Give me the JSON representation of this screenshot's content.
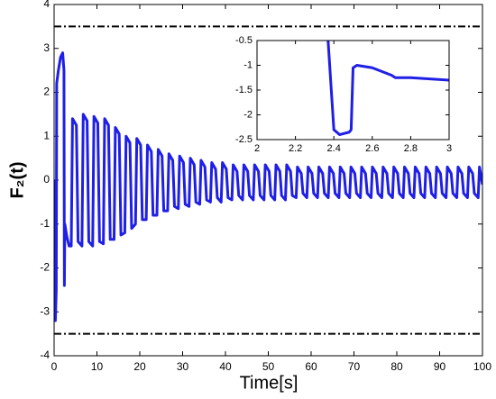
{
  "chart_data": [
    {
      "type": "line",
      "xlabel": "Time[s]",
      "ylabel": "F₂(t)",
      "color": "#1f1fe6",
      "xlim": [
        0,
        100
      ],
      "xticks": [
        0,
        10,
        20,
        30,
        40,
        50,
        60,
        70,
        80,
        90,
        100
      ],
      "ylim": [
        -4,
        4
      ],
      "yticks": [
        -4,
        -3,
        -2,
        -1,
        0,
        1,
        2,
        3,
        4
      ],
      "hlines": [
        3.5,
        -3.5
      ],
      "hline_color": "#000000",
      "x": [
        0,
        0.1,
        0.3,
        0.5,
        0.6,
        1,
        1.5,
        2,
        2.3,
        2.4,
        2.5,
        3,
        3.5,
        4,
        4.3,
        5.2,
        5.6,
        6.5,
        6.8,
        7.7,
        8.1,
        9,
        9.3,
        10.2,
        10.6,
        11.5,
        11.8,
        12.7,
        13.1,
        14,
        14.3,
        15.2,
        15.6,
        16.5,
        16.8,
        17.7,
        18.1,
        19,
        19.3,
        20.2,
        20.6,
        21.5,
        21.8,
        22.7,
        23.1,
        24,
        24.3,
        25.2,
        25.6,
        26.5,
        26.8,
        27.7,
        28.1,
        29,
        29.3,
        30.2,
        30.6,
        31.5,
        31.8,
        32.7,
        33.1,
        34,
        34.3,
        35.2,
        35.6,
        36.5,
        36.8,
        37.7,
        38.1,
        39,
        39.3,
        40.2,
        40.6,
        41.5,
        41.8,
        42.7,
        43.1,
        44,
        44.3,
        45.2,
        45.6,
        46.5,
        46.8,
        47.7,
        48.1,
        49,
        49.3,
        50.2,
        50.6,
        51.5,
        51.8,
        52.7,
        53.1,
        54,
        54.3,
        55.2,
        55.6,
        56.5,
        56.8,
        57.7,
        58.1,
        59,
        59.3,
        60.2,
        60.6,
        61.5,
        61.8,
        62.7,
        63.1,
        64,
        64.3,
        65.2,
        65.6,
        66.5,
        66.8,
        67.7,
        68.1,
        69,
        69.3,
        70.2,
        70.6,
        71.5,
        71.8,
        72.7,
        73.1,
        74,
        74.3,
        75.2,
        75.6,
        76.5,
        76.8,
        77.7,
        78.1,
        79,
        79.3,
        80.2,
        80.6,
        81.5,
        81.8,
        82.7,
        83.1,
        84,
        84.3,
        85.2,
        85.6,
        86.5,
        86.8,
        87.7,
        88.1,
        89,
        89.3,
        90.2,
        90.6,
        91.5,
        91.8,
        92.7,
        93.1,
        94,
        94.3,
        95.2,
        95.6,
        96.5,
        96.8,
        97.7,
        98.1,
        99,
        99.3,
        100
      ],
      "values": [
        0,
        -1,
        -3.2,
        -2.5,
        2.2,
        2.5,
        2.8,
        2.9,
        2.5,
        -2.4,
        -1,
        -1.3,
        -1.5,
        -1.5,
        1.4,
        1.25,
        -1.4,
        -1.5,
        1.5,
        1.35,
        -1.4,
        -1.5,
        1.45,
        1.3,
        -1.4,
        -1.45,
        1.4,
        1.25,
        -1.35,
        -1.35,
        1.2,
        1.05,
        -1.25,
        -1.2,
        1,
        0.85,
        -1.1,
        -1,
        0.95,
        0.8,
        -0.9,
        -0.9,
        0.8,
        0.65,
        -0.8,
        -0.8,
        0.7,
        0.55,
        -0.7,
        -0.7,
        0.6,
        0.45,
        -0.6,
        -0.65,
        0.55,
        0.4,
        -0.55,
        -0.6,
        0.5,
        0.35,
        -0.5,
        -0.55,
        0.45,
        0.3,
        -0.45,
        -0.5,
        0.4,
        0.25,
        -0.4,
        -0.5,
        0.4,
        0.25,
        -0.4,
        -0.45,
        0.35,
        0.2,
        -0.35,
        -0.45,
        0.35,
        0.2,
        -0.35,
        -0.45,
        0.35,
        0.2,
        -0.35,
        -0.45,
        0.35,
        0.2,
        -0.35,
        -0.45,
        0.35,
        0.2,
        -0.35,
        -0.45,
        0.35,
        0.2,
        -0.35,
        -0.4,
        0.3,
        0.15,
        -0.3,
        -0.4,
        0.3,
        0.15,
        -0.3,
        -0.4,
        0.3,
        0.15,
        -0.3,
        -0.4,
        0.3,
        0.15,
        -0.3,
        -0.4,
        0.3,
        0.15,
        -0.3,
        -0.4,
        0.3,
        0.15,
        -0.3,
        -0.4,
        0.3,
        0.15,
        -0.3,
        -0.4,
        0.3,
        0.15,
        -0.3,
        -0.4,
        0.3,
        0.15,
        -0.3,
        -0.4,
        0.3,
        0.15,
        -0.3,
        -0.4,
        0.3,
        0.15,
        -0.3,
        -0.4,
        0.3,
        0.15,
        -0.3,
        -0.4,
        0.3,
        0.15,
        -0.3,
        -0.4,
        0.3,
        0.15,
        -0.3,
        -0.4,
        0.3,
        0.15,
        -0.3,
        -0.4,
        0.3,
        0.15,
        -0.3,
        -0.4,
        0.3,
        0.15,
        -0.3,
        -0.4,
        0.3,
        -0.1
      ]
    },
    {
      "type": "line",
      "color": "#1f1fe6",
      "xlim": [
        2,
        3
      ],
      "xticks": [
        2,
        2.2,
        2.4,
        2.6,
        2.8,
        3
      ],
      "ylim": [
        -2.5,
        -0.5
      ],
      "yticks": [
        -2.5,
        -2,
        -1.5,
        -1,
        -0.5
      ],
      "x": [
        2.37,
        2.4,
        2.43,
        2.48,
        2.49,
        2.5,
        2.52,
        2.6,
        2.7,
        2.72,
        2.8,
        3
      ],
      "values": [
        -0.5,
        -2.3,
        -2.4,
        -2.35,
        -2.3,
        -1.05,
        -1,
        -1.05,
        -1.2,
        -1.25,
        -1.25,
        -1.3
      ]
    }
  ]
}
